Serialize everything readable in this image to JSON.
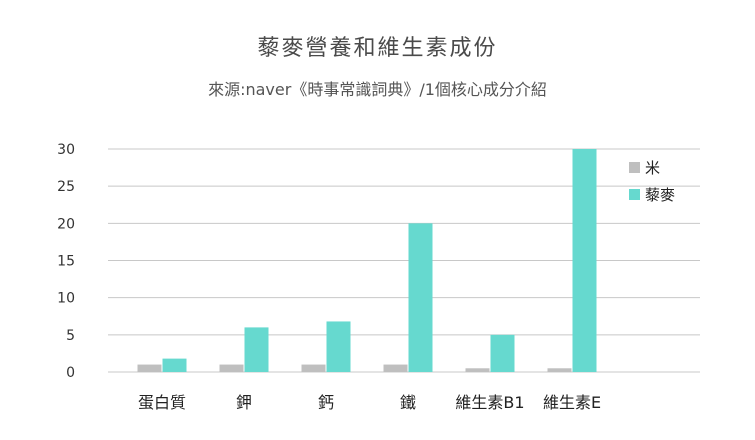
{
  "chart_data": {
    "type": "bar",
    "title": "藜麥營養和維生素成份",
    "subtitle": "來源:naver《時事常識詞典》/1個核心成分介紹",
    "categories": [
      "蛋白質",
      "鉀",
      "鈣",
      "鐵",
      "維生素B1",
      "維生素E"
    ],
    "series": [
      {
        "name": "米",
        "color": "#bfbfbf",
        "values": [
          1,
          1,
          1,
          1,
          0.5,
          0.5
        ]
      },
      {
        "name": "藜麥",
        "color": "#66d9cf",
        "values": [
          1.8,
          6,
          6.8,
          20,
          5,
          30
        ]
      }
    ],
    "yticks": [
      "0",
      "5",
      "10",
      "15",
      "20",
      "25",
      "30"
    ],
    "ylim": [
      0,
      30
    ],
    "grid": true,
    "legend": "top-right"
  }
}
